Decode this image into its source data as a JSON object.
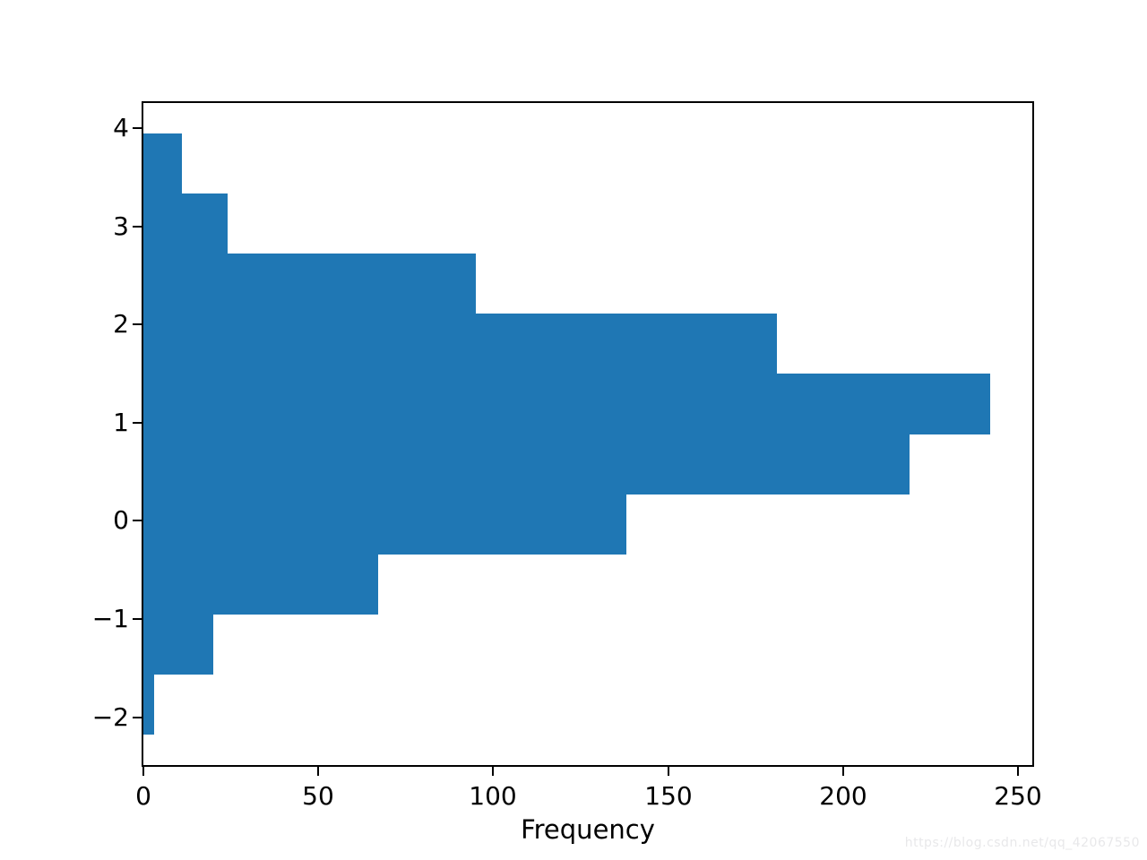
{
  "figure": {
    "background": "#ffffff"
  },
  "watermark": {
    "text": "https://blog.csdn.net/qq_42067550",
    "color": "#e8e8ea"
  },
  "chart_data": {
    "type": "bar",
    "subtype": "histogram",
    "orientation": "horizontal",
    "title": "",
    "xlabel": "Frequency",
    "ylabel": "",
    "bar_color": "#1f77b4",
    "grid": false,
    "legend_position": "none",
    "bin_edges": [
      -2.18,
      -1.567,
      -0.954,
      -0.341,
      0.272,
      0.885,
      1.498,
      2.111,
      2.724,
      3.337,
      3.95
    ],
    "counts": [
      3,
      20,
      67,
      138,
      219,
      242,
      181,
      95,
      24,
      11
    ],
    "xlim": [
      0,
      254.1
    ],
    "ylim": [
      -2.487,
      4.257
    ],
    "xticks": [
      0,
      50,
      100,
      150,
      200,
      250
    ],
    "yticks": [
      -2,
      -1,
      0,
      1,
      2,
      3,
      4
    ]
  }
}
